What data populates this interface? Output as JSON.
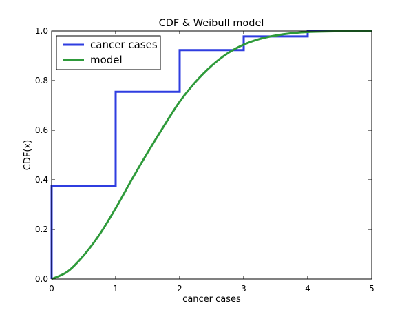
{
  "chart_data": {
    "type": "line",
    "title": "CDF & Weibull model",
    "xlabel": "cancer cases",
    "ylabel": "CDF(x)",
    "xlim": [
      0,
      5
    ],
    "ylim": [
      0,
      1
    ],
    "grid": false,
    "legend_position": "top-left",
    "x_ticks": [
      "0",
      "1",
      "2",
      "3",
      "4",
      "5"
    ],
    "y_ticks": [
      "0.0",
      "0.2",
      "0.4",
      "0.6",
      "0.8",
      "1.0"
    ],
    "series": [
      {
        "name": "cancer cases",
        "style": "step",
        "color": "#2f3de0",
        "x": [
          0,
          0,
          1,
          1,
          2,
          2,
          3,
          3,
          4,
          4,
          5
        ],
        "y": [
          0,
          0.375,
          0.375,
          0.755,
          0.755,
          0.923,
          0.923,
          0.978,
          0.978,
          1.0,
          1.0
        ]
      },
      {
        "name": "model",
        "style": "smooth",
        "color": "#2e9a3a",
        "x": [
          0,
          0.25,
          0.5,
          0.75,
          1.0,
          1.25,
          1.5,
          1.75,
          2.0,
          2.25,
          2.5,
          2.75,
          3.0,
          3.25,
          3.5,
          3.75,
          4.0,
          4.5,
          5.0
        ],
        "y": [
          0,
          0.03,
          0.095,
          0.18,
          0.285,
          0.4,
          0.51,
          0.615,
          0.715,
          0.795,
          0.86,
          0.91,
          0.945,
          0.968,
          0.982,
          0.991,
          0.996,
          0.999,
          1.0
        ]
      }
    ]
  }
}
